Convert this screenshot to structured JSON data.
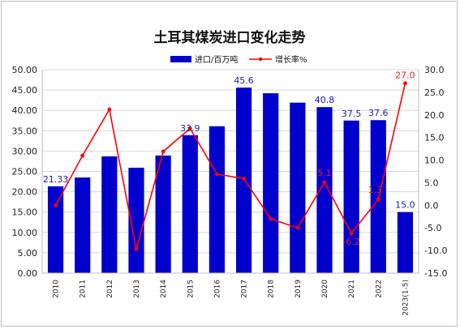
{
  "chart_data": {
    "type": "bar+line",
    "title": "土耳其煤炭进口变化走势",
    "categories": [
      "2010",
      "2011",
      "2012",
      "2013",
      "2014",
      "2015",
      "2016",
      "2017",
      "2018",
      "2019",
      "2020",
      "2021",
      "2022",
      "2023(1-5)"
    ],
    "series": [
      {
        "name": "进口/百万吨",
        "type": "bar",
        "axis": "left",
        "color": "#0000cc",
        "values": [
          21.33,
          23.5,
          28.7,
          25.9,
          28.9,
          33.9,
          36.1,
          45.6,
          44.2,
          41.9,
          40.8,
          37.5,
          37.6,
          15.0
        ]
      },
      {
        "name": "增长率%",
        "type": "line",
        "axis": "right",
        "color": "#ff0000",
        "values": [
          0.0,
          11.0,
          21.2,
          -9.7,
          11.9,
          17.0,
          6.9,
          5.9,
          -3.0,
          -5.0,
          5.1,
          -6.2,
          1.3,
          27.0
        ]
      }
    ],
    "bar_data_labels": [
      {
        "index": 0,
        "text": "21.33"
      },
      {
        "index": 5,
        "text": "33.9"
      },
      {
        "index": 7,
        "text": "45.6"
      },
      {
        "index": 10,
        "text": "40.8"
      },
      {
        "index": 11,
        "text": "37.5"
      },
      {
        "index": 12,
        "text": "37.6"
      },
      {
        "index": 13,
        "text": "15.0"
      }
    ],
    "line_data_labels": [
      {
        "index": 10,
        "text": "5.1"
      },
      {
        "index": 11,
        "text": "-6.2"
      },
      {
        "index": 12,
        "text": "1.3"
      },
      {
        "index": 13,
        "text": "27.0"
      }
    ],
    "y_left": {
      "min": 0,
      "max": 50,
      "step": 5,
      "decimals": 2,
      "ticks": [
        "0.00",
        "5.00",
        "10.00",
        "15.00",
        "20.00",
        "25.00",
        "30.00",
        "35.00",
        "40.00",
        "45.00",
        "50.00"
      ]
    },
    "y_right": {
      "min": -15,
      "max": 30,
      "step": 5,
      "decimals": 1,
      "ticks": [
        "-15.0",
        "-10.0",
        "-5.0",
        "0.0",
        "5.0",
        "10.0",
        "15.0",
        "20.0",
        "25.0",
        "30.0"
      ]
    },
    "grid": true,
    "legend_position": "top-right",
    "xlabel": "",
    "ylabel": ""
  }
}
